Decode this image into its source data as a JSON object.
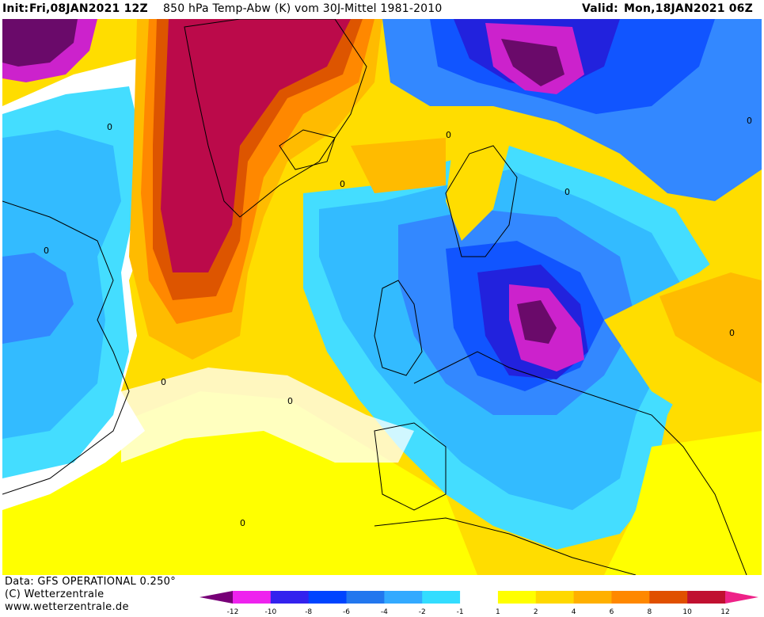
{
  "header": {
    "init_label": "Init:",
    "init_time": "Fri,08JAN2021 12Z",
    "product": "850 hPa Temp-Abw (K) vom 30J-Mittel 1981-2010",
    "valid_label": "Valid:",
    "valid_time": "Mon,18JAN2021 06Z"
  },
  "footer": {
    "data_source": "Data: GFS OPERATIONAL 0.250°",
    "copyright": "(C) Wetterzentrale",
    "website": "www.wetterzentrale.de"
  },
  "legend": {
    "ticks": [
      "-12",
      "-10",
      "-8",
      "-6",
      "-4",
      "-2",
      "-1",
      "1",
      "2",
      "4",
      "6",
      "8",
      "10",
      "12"
    ],
    "colors": [
      "#ee22ee",
      "#3322ee",
      "#0044ff",
      "#2277ee",
      "#33aaff",
      "#33ddff",
      "#ffffff",
      "#ffff00",
      "#ffd800",
      "#ffb000",
      "#ff8800",
      "#e05000",
      "#c01030"
    ],
    "end_low": "#770077",
    "end_high": "#ee2288"
  },
  "map": {
    "palette": {
      "deep_purple": "#6a0a6a",
      "magenta": "#cc22cc",
      "dark_blue": "#2222dd",
      "blue": "#1155ff",
      "mid_blue": "#3388ff",
      "sky": "#33bbff",
      "cyan": "#44ddff",
      "white": "#ffffff",
      "yellow": "#ffff00",
      "gold": "#ffdd00",
      "light_orange": "#ffbb00",
      "orange": "#ff8800",
      "dark_orange": "#dd5500",
      "crimson": "#bb0a4a"
    },
    "zero_line_label": "0"
  }
}
